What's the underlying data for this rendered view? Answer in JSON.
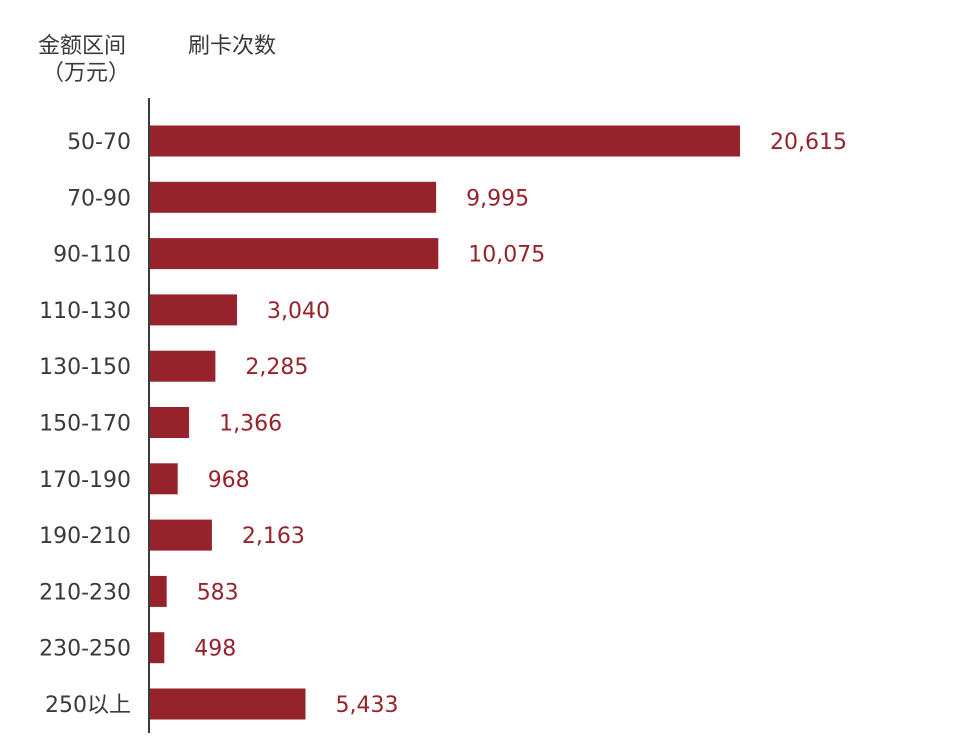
{
  "chart_data": {
    "type": "bar",
    "orientation": "horizontal",
    "category_header_line1": "金额区间",
    "category_header_line2": "（万元）",
    "value_header": "刷卡次数",
    "categories": [
      "50-70",
      "70-90",
      "90-110",
      "110-130",
      "130-150",
      "150-170",
      "170-190",
      "190-210",
      "210-230",
      "230-250",
      "250以上"
    ],
    "values": [
      20615,
      9995,
      10075,
      3040,
      2285,
      1366,
      968,
      2163,
      583,
      498,
      5433
    ],
    "value_labels": [
      "20,615",
      "9,995",
      "10,075",
      "3,040",
      "2,285",
      "1,366",
      "968",
      "2,163",
      "583",
      "498",
      "5,433"
    ],
    "xlim": [
      0,
      20615
    ],
    "grid": false,
    "legend": "none",
    "colors": {
      "bar": "#96232b",
      "value_label": "#96232b",
      "axis": "#3a3a3a",
      "text": "#3a3a3a"
    }
  }
}
